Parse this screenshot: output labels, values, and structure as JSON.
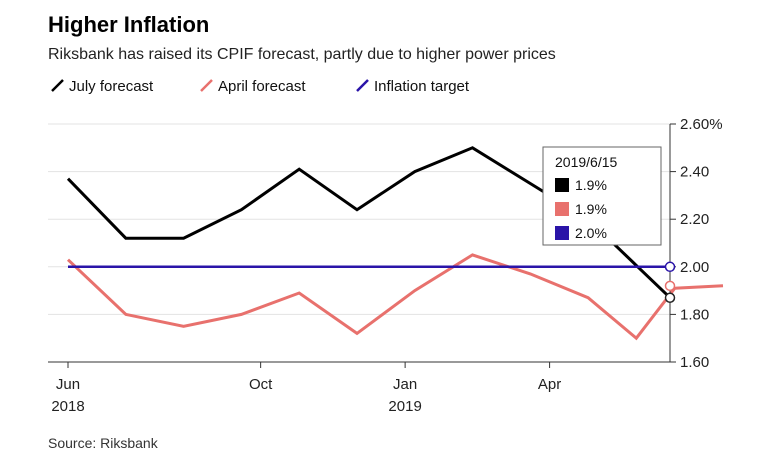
{
  "chart_data": {
    "type": "line",
    "title": "Higher Inflation",
    "subtitle": "Riksbank has raised its CPIF forecast, partly due to higher power prices",
    "source": "Source: Riksbank",
    "x_ticks": [
      {
        "x": 0,
        "line1": "Jun",
        "line2": "2018"
      },
      {
        "x": 4,
        "line1": "Oct",
        "line2": ""
      },
      {
        "x": 7,
        "line1": "Jan",
        "line2": "2019"
      },
      {
        "x": 10,
        "line1": "Apr",
        "line2": ""
      }
    ],
    "x_range": [
      0,
      12.5
    ],
    "ylim": [
      1.6,
      2.6
    ],
    "y_ticks": [
      {
        "v": 2.6,
        "label": "2.60%"
      },
      {
        "v": 2.4,
        "label": "2.40"
      },
      {
        "v": 2.2,
        "label": "2.20"
      },
      {
        "v": 2.0,
        "label": "2.00"
      },
      {
        "v": 1.8,
        "label": "1.80"
      },
      {
        "v": 1.6,
        "label": "1.60"
      }
    ],
    "series": [
      {
        "name": "July forecast",
        "color": "#000000",
        "points": [
          [
            0,
            2.37
          ],
          [
            1.2,
            2.12
          ],
          [
            2.4,
            2.12
          ],
          [
            3.6,
            2.24
          ],
          [
            4.8,
            2.41
          ],
          [
            6.0,
            2.24
          ],
          [
            7.2,
            2.4
          ],
          [
            8.4,
            2.5
          ],
          [
            9.6,
            2.35
          ],
          [
            10.8,
            2.2
          ],
          [
            12.5,
            1.87
          ]
        ]
      },
      {
        "name": "April forecast",
        "color": "#e8716d",
        "points": [
          [
            0,
            2.03
          ],
          [
            1.2,
            1.8
          ],
          [
            2.4,
            1.75
          ],
          [
            3.6,
            1.8
          ],
          [
            4.8,
            1.89
          ],
          [
            6.0,
            1.72
          ],
          [
            7.2,
            1.9
          ],
          [
            8.4,
            2.05
          ],
          [
            9.6,
            1.97
          ],
          [
            10.8,
            1.87
          ],
          [
            11.8,
            1.7
          ],
          [
            12.6,
            1.91
          ],
          [
            13.6,
            1.92
          ]
        ]
      },
      {
        "name": "Inflation target",
        "color": "#2a14a8",
        "points": [
          [
            0,
            2.0
          ],
          [
            12.5,
            2.0
          ]
        ]
      }
    ],
    "tooltip": {
      "date": "2019/6/15",
      "rows": [
        {
          "value": "1.9%",
          "color": "#000000"
        },
        {
          "value": "1.9%",
          "color": "#e8716d"
        },
        {
          "value": "2.0%",
          "color": "#2a14a8"
        }
      ]
    }
  }
}
